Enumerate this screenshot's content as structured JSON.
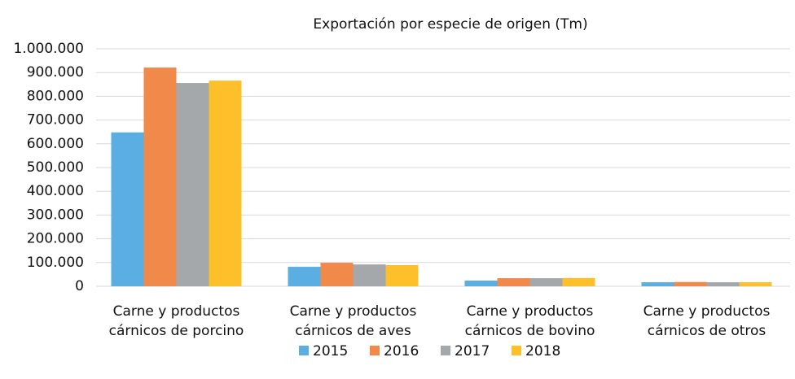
{
  "chart_data": {
    "type": "bar",
    "title": "Exportación por especie de origen (Tm)",
    "categories": [
      "Carne y productos cárnicos de porcino",
      "Carne y productos cárnicos de aves",
      "Carne y productos cárnicos de bovino",
      "Carne y productos cárnicos de otros"
    ],
    "series": [
      {
        "name": "2015",
        "color": "#5aaee2",
        "values": [
          648000,
          82000,
          24000,
          17000
        ]
      },
      {
        "name": "2016",
        "color": "#f0894a",
        "values": [
          921000,
          99000,
          34000,
          18000
        ]
      },
      {
        "name": "2017",
        "color": "#a5a8ab",
        "values": [
          856000,
          92000,
          34000,
          17000
        ]
      },
      {
        "name": "2018",
        "color": "#fdc02b",
        "values": [
          866000,
          89000,
          35000,
          17000
        ]
      }
    ],
    "ylim": [
      0,
      1000000
    ],
    "yticks": [
      0,
      {
        "value": 100000,
        "label": "100.000"
      },
      {
        "value": 200000,
        "label": "200.000"
      },
      {
        "value": 300000,
        "label": "300.000"
      },
      {
        "value": 400000,
        "label": "400.000"
      },
      {
        "value": 500000,
        "label": "500.000"
      },
      {
        "value": 600000,
        "label": "600.000"
      },
      {
        "value": 700000,
        "label": "700.000"
      },
      {
        "value": 800000,
        "label": "800.000"
      },
      {
        "value": 900000,
        "label": "900.000"
      },
      {
        "value": 1000000,
        "label": "1.000.000"
      }
    ],
    "grid": true,
    "legend": "bottom"
  }
}
